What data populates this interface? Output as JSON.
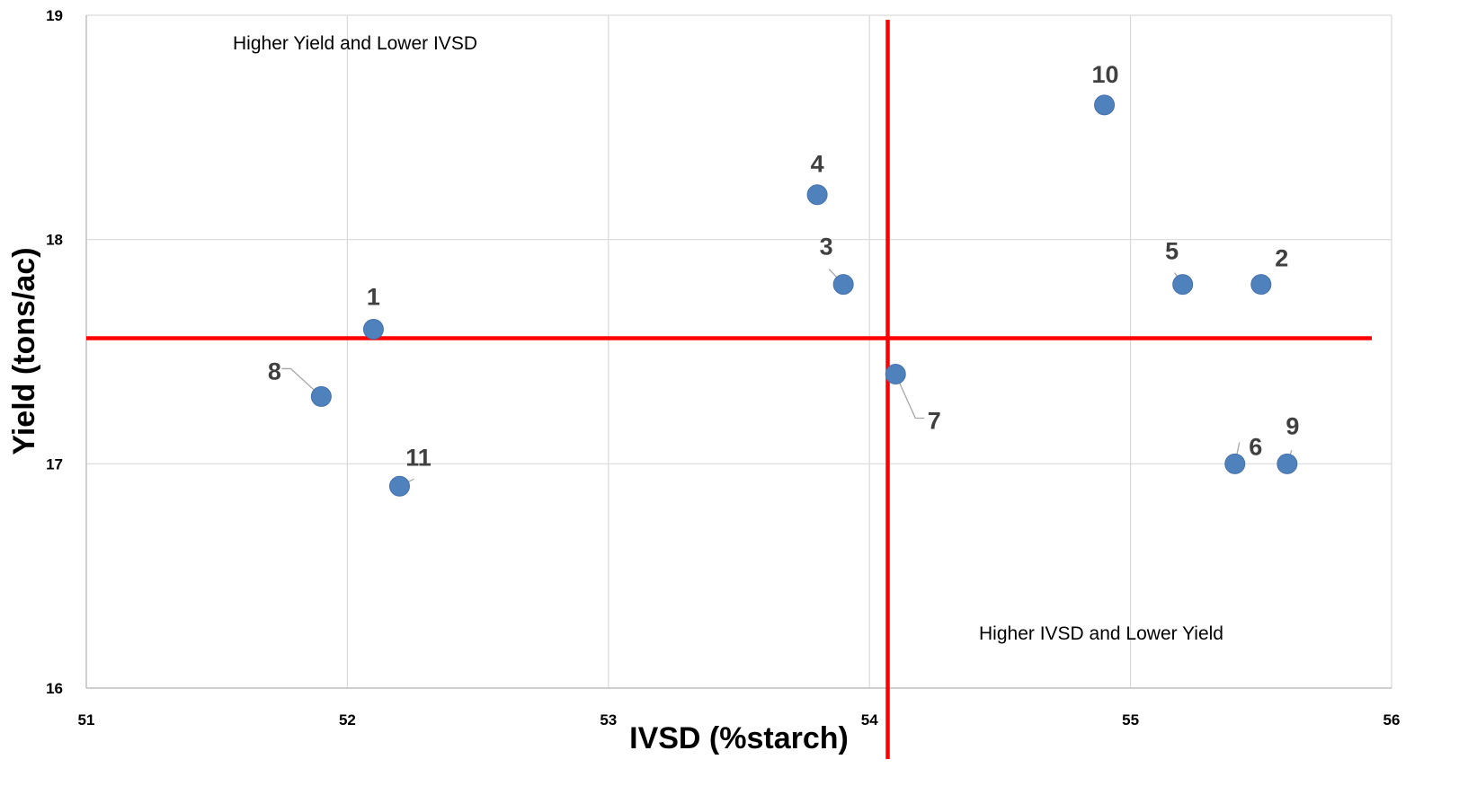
{
  "chart_data": {
    "type": "scatter",
    "title": "",
    "xlabel": "IVSD (%starch)",
    "ylabel": "Yield (tons/ac)",
    "xlim": [
      51,
      56
    ],
    "ylim": [
      16,
      19
    ],
    "xticks": [
      51,
      52,
      53,
      54,
      55,
      56
    ],
    "yticks": [
      16,
      17,
      18,
      19
    ],
    "grid": true,
    "legend": "none",
    "marker_color": "#4F81BD",
    "reference_line_color": "#FF0000",
    "reference_lines": {
      "x": 54.07,
      "y": 17.56
    },
    "annotations": [
      "Higher Yield and Lower IVSD",
      "Higher IVSD and Lower Yield"
    ],
    "points": [
      {
        "label": "1",
        "x": 52.1,
        "y": 17.6
      },
      {
        "label": "2",
        "x": 55.5,
        "y": 17.8
      },
      {
        "label": "3",
        "x": 53.9,
        "y": 17.8
      },
      {
        "label": "4",
        "x": 53.8,
        "y": 18.2
      },
      {
        "label": "5",
        "x": 55.2,
        "y": 17.8
      },
      {
        "label": "6",
        "x": 55.4,
        "y": 17.0
      },
      {
        "label": "7",
        "x": 54.1,
        "y": 17.4
      },
      {
        "label": "8",
        "x": 51.9,
        "y": 17.3
      },
      {
        "label": "9",
        "x": 55.6,
        "y": 17.0
      },
      {
        "label": "10",
        "x": 54.9,
        "y": 18.6
      },
      {
        "label": "11",
        "x": 52.2,
        "y": 16.9
      }
    ]
  }
}
